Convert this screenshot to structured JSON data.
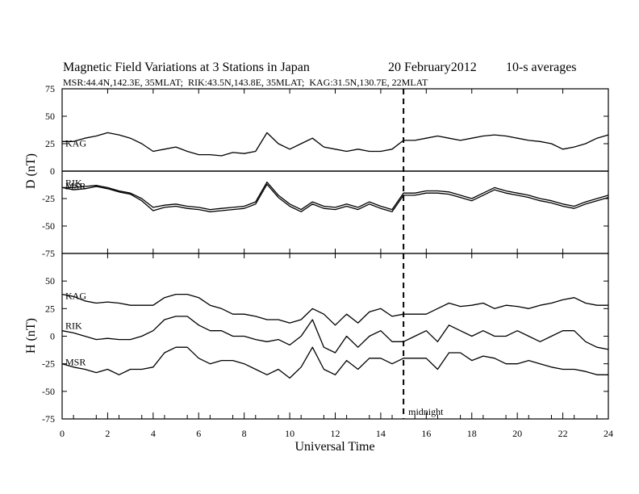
{
  "header": {
    "title": "Magnetic Field Variations at 3 Stations in Japan",
    "date": "20 February2012",
    "averaging": "10-s averages",
    "stations_line": "MSR:44.4N,142.3E, 35MLAT;  RIK:43.5N,143.8E, 35MLAT;  KAG:31.5N,130.7E, 22MLAT"
  },
  "chart_data": [
    {
      "type": "line",
      "panel": "D",
      "ylabel": "D (nT)",
      "ylim": [
        -75,
        75
      ],
      "yticks": [
        75,
        50,
        25,
        0,
        -25,
        -50,
        -75
      ],
      "xlabel": "Universal Time",
      "xlim": [
        0,
        24
      ],
      "xticks": [
        0,
        2,
        4,
        6,
        8,
        10,
        12,
        14,
        16,
        18,
        20,
        22,
        24
      ],
      "zero_line": true,
      "marker_line": {
        "x": 15,
        "style": "dashed",
        "label": "midnight"
      },
      "x": [
        0,
        0.5,
        1,
        1.5,
        2,
        2.5,
        3,
        3.5,
        4,
        4.5,
        5,
        5.5,
        6,
        6.5,
        7,
        7.5,
        8,
        8.5,
        9,
        9.5,
        10,
        10.5,
        11,
        11.5,
        12,
        12.5,
        13,
        13.5,
        14,
        14.5,
        15,
        15.5,
        16,
        16.5,
        17,
        17.5,
        18,
        18.5,
        19,
        19.5,
        20,
        20.5,
        21,
        21.5,
        22,
        22.5,
        23,
        23.5,
        24
      ],
      "series": [
        {
          "name": "KAG",
          "values": [
            27,
            27,
            30,
            32,
            35,
            33,
            30,
            25,
            18,
            20,
            22,
            18,
            15,
            15,
            14,
            17,
            16,
            18,
            35,
            25,
            20,
            25,
            30,
            22,
            20,
            18,
            20,
            18,
            18,
            20,
            28,
            28,
            30,
            32,
            30,
            28,
            30,
            32,
            33,
            32,
            30,
            28,
            27,
            25,
            20,
            22,
            25,
            30,
            33
          ]
        },
        {
          "name": "RIK",
          "values": [
            -15,
            -15,
            -14,
            -13,
            -15,
            -18,
            -20,
            -25,
            -33,
            -31,
            -30,
            -32,
            -33,
            -35,
            -34,
            -33,
            -32,
            -28,
            -10,
            -22,
            -30,
            -35,
            -28,
            -32,
            -33,
            -30,
            -33,
            -28,
            -32,
            -35,
            -20,
            -20,
            -18,
            -18,
            -19,
            -22,
            -25,
            -20,
            -15,
            -18,
            -20,
            -22,
            -25,
            -27,
            -30,
            -32,
            -28,
            -25,
            -22
          ]
        },
        {
          "name": "MSR",
          "values": [
            -15,
            -17,
            -16,
            -14,
            -16,
            -19,
            -21,
            -27,
            -36,
            -33,
            -32,
            -34,
            -35,
            -37,
            -36,
            -35,
            -34,
            -30,
            -12,
            -24,
            -32,
            -37,
            -30,
            -34,
            -35,
            -32,
            -35,
            -30,
            -34,
            -37,
            -22,
            -22,
            -20,
            -20,
            -21,
            -24,
            -27,
            -22,
            -17,
            -20,
            -22,
            -24,
            -27,
            -29,
            -32,
            -34,
            -30,
            -27,
            -24
          ]
        }
      ]
    },
    {
      "type": "line",
      "panel": "H",
      "ylabel": "H (nT)",
      "ylim": [
        -75,
        75
      ],
      "yticks": [
        50,
        25,
        0,
        -25,
        -50,
        -75
      ],
      "xlabel": "Universal Time",
      "xlim": [
        0,
        24
      ],
      "xticks": [
        0,
        2,
        4,
        6,
        8,
        10,
        12,
        14,
        16,
        18,
        20,
        22,
        24
      ],
      "marker_line": {
        "x": 15,
        "style": "dashed",
        "label": "midnight"
      },
      "x": [
        0,
        0.5,
        1,
        1.5,
        2,
        2.5,
        3,
        3.5,
        4,
        4.5,
        5,
        5.5,
        6,
        6.5,
        7,
        7.5,
        8,
        8.5,
        9,
        9.5,
        10,
        10.5,
        11,
        11.5,
        12,
        12.5,
        13,
        13.5,
        14,
        14.5,
        15,
        15.5,
        16,
        16.5,
        17,
        17.5,
        18,
        18.5,
        19,
        19.5,
        20,
        20.5,
        21,
        21.5,
        22,
        22.5,
        23,
        23.5,
        24
      ],
      "series": [
        {
          "name": "KAG",
          "values": [
            38,
            36,
            32,
            30,
            31,
            30,
            28,
            28,
            28,
            35,
            38,
            38,
            35,
            28,
            25,
            20,
            20,
            18,
            15,
            15,
            12,
            15,
            25,
            20,
            10,
            20,
            12,
            22,
            25,
            18,
            20,
            20,
            20,
            25,
            30,
            27,
            28,
            30,
            25,
            28,
            27,
            25,
            28,
            30,
            33,
            35,
            30,
            28,
            28
          ]
        },
        {
          "name": "RIK",
          "values": [
            5,
            3,
            0,
            -3,
            -2,
            -3,
            -3,
            0,
            5,
            15,
            18,
            18,
            10,
            5,
            5,
            0,
            0,
            -3,
            -5,
            -3,
            -8,
            0,
            15,
            -10,
            -15,
            0,
            -10,
            0,
            5,
            -5,
            -5,
            0,
            5,
            -5,
            10,
            5,
            0,
            5,
            0,
            0,
            5,
            0,
            -5,
            0,
            5,
            5,
            -5,
            -10,
            -12
          ]
        },
        {
          "name": "MSR",
          "values": [
            -25,
            -28,
            -30,
            -33,
            -30,
            -35,
            -30,
            -30,
            -28,
            -15,
            -10,
            -10,
            -20,
            -25,
            -22,
            -22,
            -25,
            -30,
            -35,
            -30,
            -38,
            -28,
            -10,
            -30,
            -35,
            -22,
            -30,
            -20,
            -20,
            -25,
            -20,
            -20,
            -20,
            -30,
            -15,
            -15,
            -22,
            -18,
            -20,
            -25,
            -25,
            -22,
            -25,
            -28,
            -30,
            -30,
            -32,
            -35,
            -35
          ]
        }
      ]
    }
  ]
}
